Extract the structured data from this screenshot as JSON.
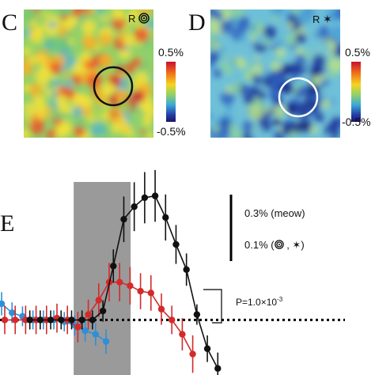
{
  "panels": {
    "c": {
      "letter": "C",
      "tag": "R",
      "tag_symbol": "concentric-circles-icon",
      "scale_max": "0.5%",
      "scale_min": "-0.5%"
    },
    "d": {
      "letter": "D",
      "tag": "R",
      "tag_symbol": "star-icon",
      "scale_max": "0.5%",
      "scale_min": "-0.5%"
    },
    "e": {
      "letter": "E",
      "scale_label_1": "0.3% (meow)",
      "scale_label_2_prefix": "0.1% (",
      "scale_label_2_sep": " , ",
      "scale_label_2_suffix": ")",
      "p_value_prefix": "P=1.0×10",
      "p_value_exp": "-3"
    }
  },
  "colors": {
    "meow_series": "#111111",
    "concentric_series": "#d42a2a",
    "star_series": "#2f8fd8",
    "stimulus_box": "#9a9a9a",
    "baseline": "#000000"
  },
  "chart_data": {
    "type": "line",
    "series": [
      {
        "color": "#111111",
        "marker": "black",
        "values": [
          0.0,
          0.0,
          0.0,
          0.0,
          0.0,
          0.0,
          0.0,
          0.5,
          3.0,
          5.6,
          6.3,
          6.8,
          6.9,
          5.7,
          4.2,
          2.8,
          0.3,
          -1.6,
          -2.7
        ]
      },
      {
        "color": "#d42a2a",
        "marker": "red",
        "values": [
          0.0,
          0.0,
          0.0,
          0.0,
          0.0,
          0.1,
          0.0,
          -0.4,
          0.3,
          1.1,
          2.1,
          2.1,
          1.9,
          1.6,
          1.5,
          0.6,
          0.0,
          -0.8,
          -1.9
        ]
      },
      {
        "color": "#2f8fd8",
        "marker": "blue",
        "values": [
          0.9,
          0.4,
          0.2,
          0.0,
          0.0,
          0.0,
          -0.1,
          -0.3,
          -0.6,
          -0.8,
          -1.2
        ]
      }
    ],
    "baseline": 0,
    "ylim": [
      -2.8,
      7.5
    ],
    "shaded_region": {
      "from_point": 5,
      "to_point": 10
    }
  }
}
